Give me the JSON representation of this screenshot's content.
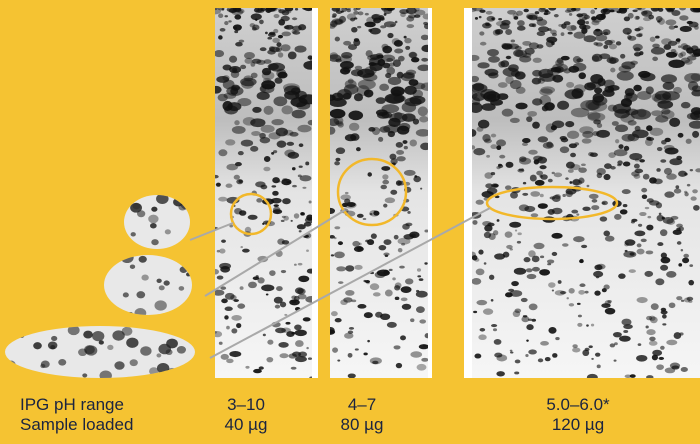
{
  "labels": [
    "IPG pH range",
    "Sample loaded"
  ],
  "columns": [
    {
      "ph_range": "3–10",
      "sample": "40 µg"
    },
    {
      "ph_range": "4–7",
      "sample": "80 µg"
    },
    {
      "ph_range": "5.0–6.0*",
      "sample": "120 µg"
    }
  ]
}
